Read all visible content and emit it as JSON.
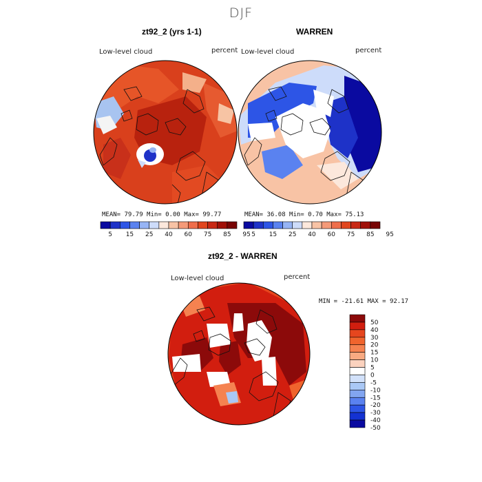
{
  "season": "DJF",
  "panels": [
    {
      "title": "zt92_2 (yrs 1-1)",
      "variable": "Low-level cloud",
      "units": "percent",
      "mean": "79.79",
      "min": "0.00",
      "max": "99.77",
      "mean_label": "MEAN=",
      "min_label": "Min=",
      "max_label": "Max="
    },
    {
      "title": "WARREN",
      "variable": "Low-level cloud",
      "units": "percent",
      "mean": "36.08",
      "min": "0.70",
      "max": "75.13",
      "mean_label": "MEAN=",
      "min_label": "Min=",
      "max_label": "Max="
    }
  ],
  "abs_colorbar": {
    "labels": [
      "5",
      "15",
      "25",
      "40",
      "60",
      "75",
      "85",
      "95"
    ],
    "colors": [
      "#0a0aa0",
      "#1e32c8",
      "#2d55e6",
      "#5a82f0",
      "#96b4f5",
      "#cddcfa",
      "#fce8dc",
      "#f8c3a5",
      "#f59a78",
      "#ef6e4b",
      "#e1461e",
      "#c82814",
      "#a01008",
      "#780505"
    ]
  },
  "diff_panel": {
    "title": "zt92_2 - WARREN",
    "variable": "Low-level cloud",
    "units": "percent",
    "stats_text": "MIN = -21.61 MAX =  92.17"
  },
  "diff_colorbar": {
    "labels": [
      "50",
      "40",
      "30",
      "20",
      "15",
      "10",
      "5",
      "0",
      "-5",
      "-10",
      "-15",
      "-20",
      "-30",
      "-40",
      "-50"
    ],
    "colors": [
      "#8c0a0a",
      "#d21e0f",
      "#e6461e",
      "#f0642d",
      "#f58250",
      "#f8aa82",
      "#fbd2be",
      "#ffffff",
      "#d2e1fa",
      "#aac8f5",
      "#82a5f0",
      "#5a82f0",
      "#2d55e6",
      "#1432d2",
      "#0a0aa0"
    ]
  }
}
